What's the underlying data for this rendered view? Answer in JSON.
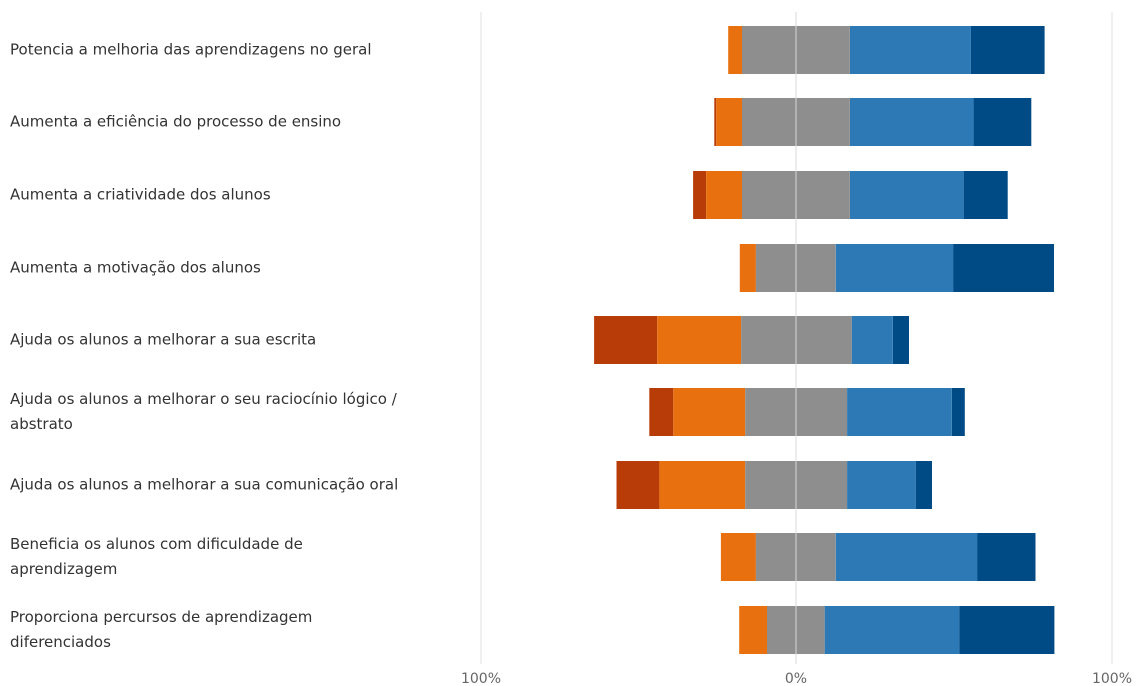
{
  "chart_data": {
    "type": "bar",
    "orientation": "horizontal",
    "stacked": "diverging",
    "title": "",
    "xlabel": "",
    "ylabel": "",
    "xlim": [
      -100,
      100
    ],
    "x_tick_labels": [
      "100%",
      "0%",
      "100%"
    ],
    "grid": false,
    "legend": "none",
    "categories": [
      "Potencia a melhoria das aprendizagens no geral",
      "Aumenta a eficiência do processo de ensino",
      "Aumenta a criatividade dos alunos",
      "Aumenta a motivação dos alunos",
      "Ajuda os alunos a melhorar a sua escrita",
      "Ajuda os alunos a melhorar o seu raciocínio lógico / abstrato",
      "Ajuda os alunos a melhorar a sua comunicação oral",
      "Beneficia os alunos com dificuldade de aprendizagem",
      "Proporciona percursos de aprendizagem diferenciados"
    ],
    "series": [
      {
        "color": "#B83C08",
        "values": [
          0,
          0.6,
          4.1,
          0,
          20,
          7.6,
          13.6,
          0,
          0
        ]
      },
      {
        "color": "#E8700E",
        "values": [
          4.4,
          8.2,
          11.4,
          5.1,
          26.6,
          22.8,
          27.2,
          11.1,
          8.8
        ]
      },
      {
        "color": "#8E8E8E",
        "values": [
          34.2,
          34.2,
          34.2,
          25.3,
          35.1,
          32.3,
          32.3,
          25.3,
          18.3
        ]
      },
      {
        "color": "#2C79B6",
        "values": [
          38.3,
          39.2,
          36.1,
          37.3,
          13,
          33.2,
          21.8,
          44.9,
          42.7
        ]
      },
      {
        "color": "#004A86",
        "values": [
          23.4,
          18.3,
          13.9,
          31.9,
          5.1,
          4.1,
          5.1,
          18.4,
          30.1
        ]
      }
    ],
    "neutral_split": [
      17.1,
      17.1,
      17.1,
      12.7,
      17.4,
      16.1,
      16.1,
      12.7,
      9.2
    ]
  }
}
